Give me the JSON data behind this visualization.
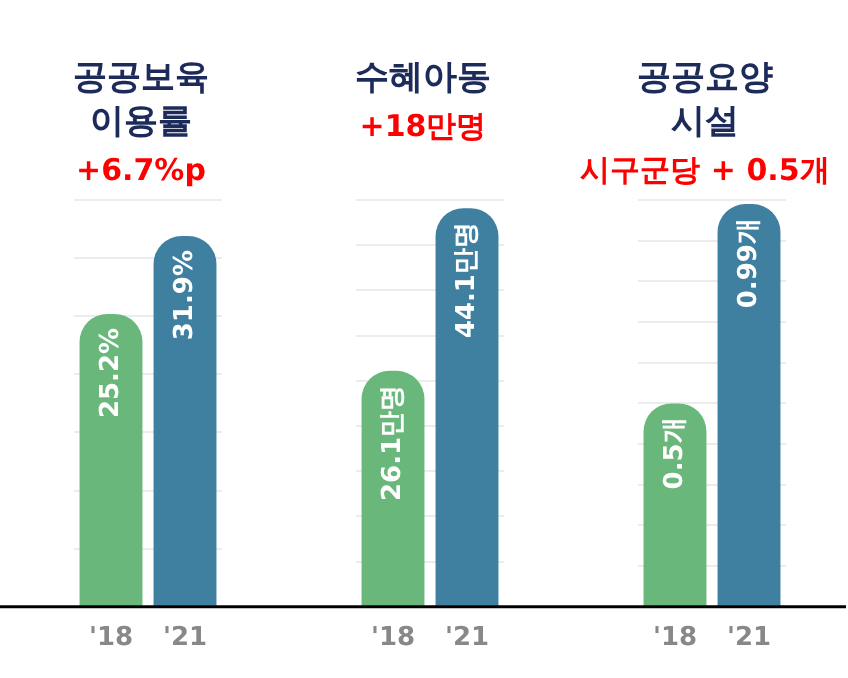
{
  "chart_data": [
    {
      "type": "bar",
      "title": "공공보육\n이용률",
      "subtitle": "+6.7%p",
      "categories": [
        "'18",
        "'21"
      ],
      "values": [
        25.2,
        31.9
      ],
      "value_labels": [
        "25.2%",
        "31.9%"
      ],
      "colors": [
        "#6ab77c",
        "#3f7fa0"
      ],
      "grid": "y",
      "tick_labels": "x"
    },
    {
      "type": "bar",
      "title": "수혜아동",
      "subtitle": "+18만명",
      "categories": [
        "'18",
        "'21"
      ],
      "values": [
        26.1,
        44.1
      ],
      "value_labels": [
        "26.1만명",
        "44.1만명"
      ],
      "colors": [
        "#6ab77c",
        "#3f7fa0"
      ],
      "grid": "y",
      "tick_labels": "x"
    },
    {
      "type": "bar",
      "title": "공공요양\n시설",
      "subtitle": "시구군당 + 0.5개",
      "categories": [
        "'18",
        "'21"
      ],
      "values": [
        0.5,
        0.99
      ],
      "value_labels": [
        "0.5개",
        "0.99개"
      ],
      "colors": [
        "#6ab77c",
        "#3f7fa0"
      ],
      "grid": "y",
      "tick_labels": "x"
    }
  ]
}
